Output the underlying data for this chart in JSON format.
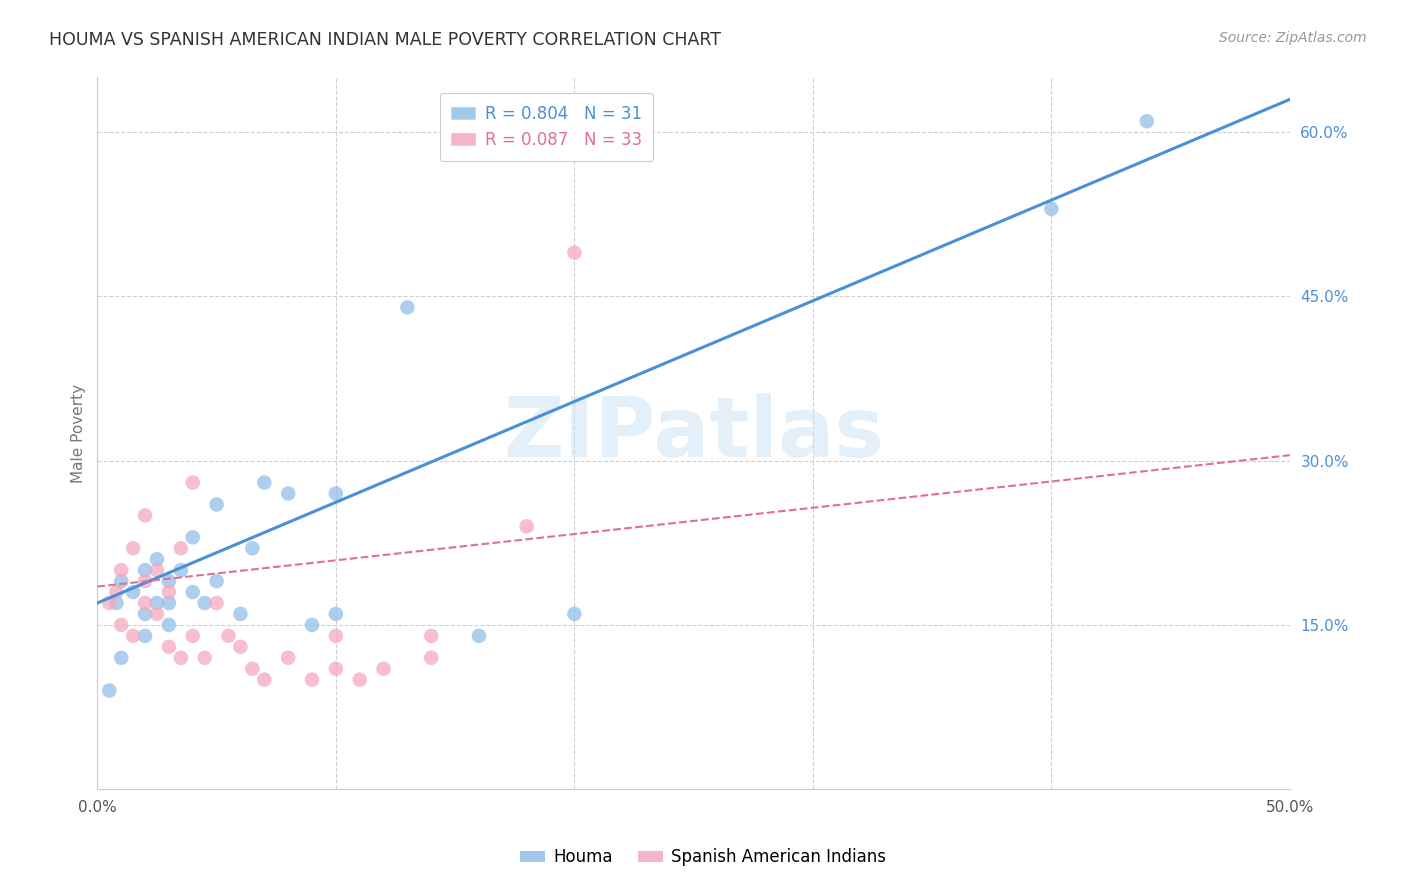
{
  "title": "HOUMA VS SPANISH AMERICAN INDIAN MALE POVERTY CORRELATION CHART",
  "source": "Source: ZipAtlas.com",
  "ylabel": "Male Poverty",
  "xlim": [
    0.0,
    0.5
  ],
  "ylim": [
    0.0,
    0.65
  ],
  "xtick_positions": [
    0.0,
    0.1,
    0.2,
    0.3,
    0.4,
    0.5
  ],
  "xticklabels": [
    "0.0%",
    "",
    "",
    "",
    "",
    "50.0%"
  ],
  "yticks_right": [
    0.15,
    0.3,
    0.45,
    0.6
  ],
  "ytick_labels_right": [
    "15.0%",
    "30.0%",
    "45.0%",
    "60.0%"
  ],
  "houma_color": "#92c0e8",
  "sai_color": "#f4a8be",
  "houma_line_color": "#4a90d9",
  "sai_line_color": "#e07090",
  "legend_text_houma": "R = 0.804   N = 31",
  "legend_text_sai": "R = 0.087   N = 33",
  "legend_color_houma": "#4a90d9",
  "legend_color_sai": "#e07090",
  "right_axis_color": "#4a90d9",
  "grid_color": "#d0d0d0",
  "background_color": "#ffffff",
  "watermark": "ZIPatlas",
  "watermark_color": "#cce4f5",
  "bottom_legend_houma": "Houma",
  "bottom_legend_sai": "Spanish American Indians",
  "houma_line_x0": 0.0,
  "houma_line_y0": 0.17,
  "houma_line_x1": 0.5,
  "houma_line_y1": 0.63,
  "sai_line_x0": 0.0,
  "sai_line_y0": 0.185,
  "sai_line_x1": 0.5,
  "sai_line_y1": 0.305,
  "houma_x": [
    0.005,
    0.008,
    0.01,
    0.01,
    0.015,
    0.02,
    0.02,
    0.02,
    0.025,
    0.025,
    0.03,
    0.03,
    0.03,
    0.035,
    0.04,
    0.04,
    0.045,
    0.05,
    0.05,
    0.06,
    0.065,
    0.07,
    0.08,
    0.09,
    0.1,
    0.1,
    0.13,
    0.16,
    0.2,
    0.4,
    0.44
  ],
  "houma_y": [
    0.09,
    0.17,
    0.19,
    0.12,
    0.18,
    0.2,
    0.16,
    0.14,
    0.21,
    0.17,
    0.19,
    0.15,
    0.17,
    0.2,
    0.18,
    0.23,
    0.17,
    0.19,
    0.26,
    0.16,
    0.22,
    0.28,
    0.27,
    0.15,
    0.16,
    0.27,
    0.44,
    0.14,
    0.16,
    0.53,
    0.61
  ],
  "sai_x": [
    0.005,
    0.008,
    0.01,
    0.01,
    0.015,
    0.015,
    0.02,
    0.02,
    0.02,
    0.025,
    0.025,
    0.03,
    0.03,
    0.035,
    0.035,
    0.04,
    0.04,
    0.045,
    0.05,
    0.055,
    0.06,
    0.065,
    0.07,
    0.08,
    0.09,
    0.1,
    0.1,
    0.11,
    0.12,
    0.14,
    0.14,
    0.18,
    0.2
  ],
  "sai_y": [
    0.17,
    0.18,
    0.2,
    0.15,
    0.22,
    0.14,
    0.25,
    0.19,
    0.17,
    0.16,
    0.2,
    0.18,
    0.13,
    0.22,
    0.12,
    0.28,
    0.14,
    0.12,
    0.17,
    0.14,
    0.13,
    0.11,
    0.1,
    0.12,
    0.1,
    0.11,
    0.14,
    0.1,
    0.11,
    0.14,
    0.12,
    0.24,
    0.49
  ]
}
